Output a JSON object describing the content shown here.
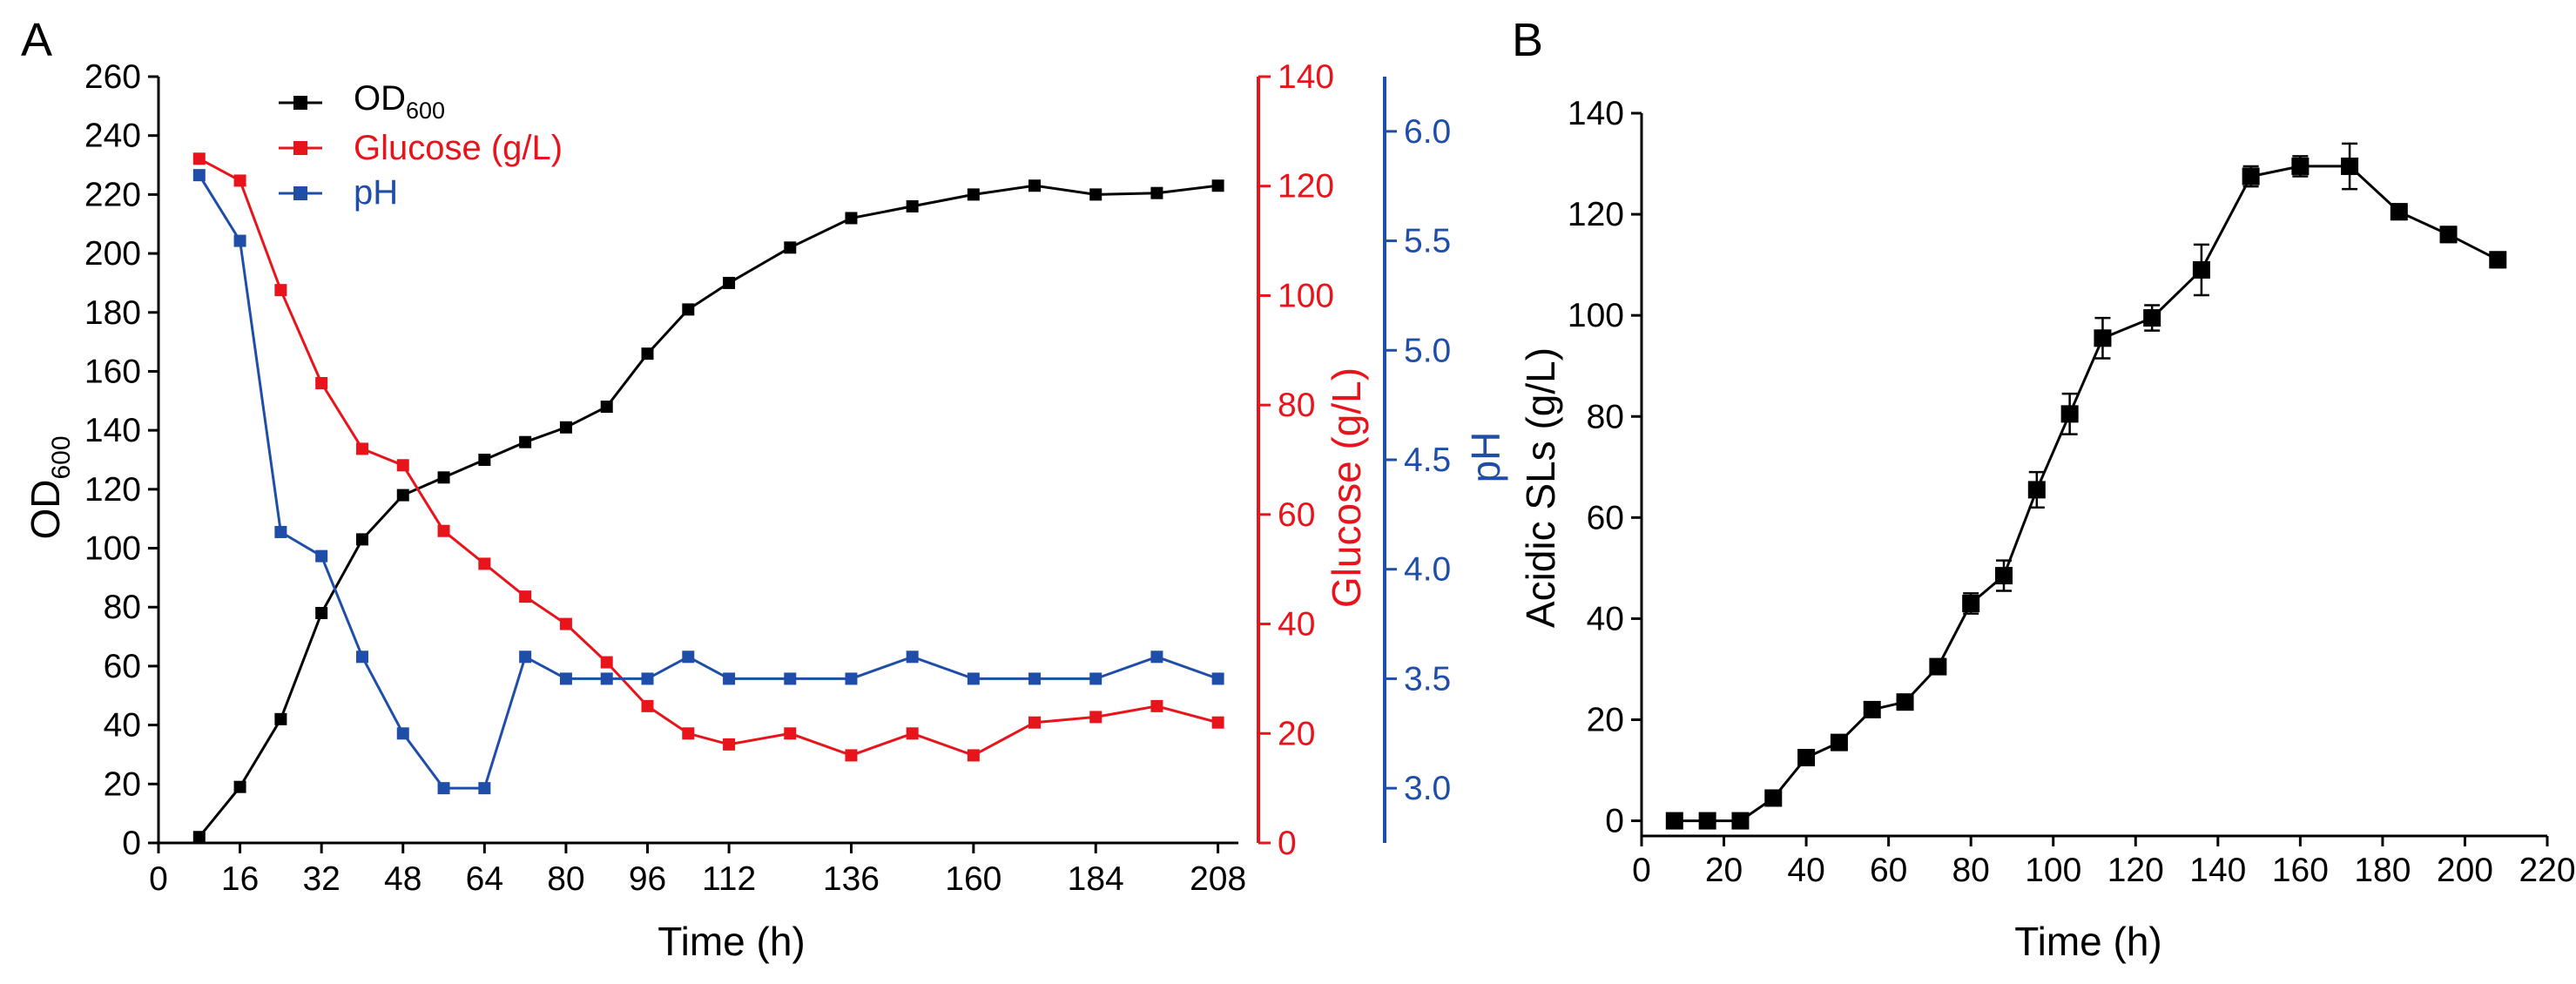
{
  "panels": {
    "a": {
      "letter": "A",
      "chart_data": {
        "type": "line",
        "xlabel": "Time (h)",
        "xlim": [
          0,
          212
        ],
        "xticks": [
          0,
          16,
          32,
          48,
          64,
          80,
          96,
          112,
          136,
          160,
          184,
          208
        ],
        "x": [
          8,
          16,
          24,
          32,
          40,
          48,
          56,
          64,
          72,
          80,
          88,
          96,
          104,
          112,
          124,
          136,
          148,
          160,
          172,
          184,
          196,
          208
        ],
        "series": [
          {
            "name": "OD600",
            "legend_main": "OD",
            "legend_sub": "600",
            "color": "#000000",
            "axis": "left",
            "values": [
              2,
              19,
              42,
              78,
              103,
              118,
              124,
              130,
              136,
              141,
              148,
              166,
              181,
              190,
              202,
              212,
              216,
              220,
              223,
              220,
              220.5,
              223
            ]
          },
          {
            "name": "Glucose (g/L)",
            "color": "#e8141c",
            "axis": "right1",
            "values": [
              125,
              121,
              101,
              84,
              72,
              69,
              57,
              51,
              45,
              40,
              33,
              25,
              20,
              18,
              20,
              16,
              20,
              16,
              22,
              23,
              25,
              22
            ]
          },
          {
            "name": "pH",
            "color": "#1f4ea8",
            "axis": "right2",
            "values": [
              5.8,
              5.5,
              4.17,
              4.06,
              3.6,
              3.25,
              3.0,
              3.0,
              3.6,
              3.5,
              3.5,
              3.5,
              3.6,
              3.5,
              3.5,
              3.5,
              3.6,
              3.5,
              3.5,
              3.5,
              3.6,
              3.5
            ]
          }
        ],
        "axes": {
          "left": {
            "label_main": "OD",
            "label_sub": "600",
            "ylim": [
              0,
              260
            ],
            "ticks": [
              0,
              20,
              40,
              60,
              80,
              100,
              120,
              140,
              160,
              180,
              200,
              220,
              240,
              260
            ],
            "color": "#000000"
          },
          "right1": {
            "label": "Glucose (g/L)",
            "ylim": [
              0,
              140
            ],
            "ticks": [
              0,
              20,
              40,
              60,
              80,
              100,
              120,
              140
            ],
            "color": "#e8141c"
          },
          "right2": {
            "label": "pH",
            "ylim": [
              2.75,
              6.25
            ],
            "ticks": [
              "3.0",
              "3.5",
              "4.0",
              "4.5",
              "5.0",
              "5.5",
              "6.0"
            ],
            "color": "#1f4ea8"
          }
        },
        "legend": "top-left"
      }
    },
    "b": {
      "letter": "B",
      "chart_data": {
        "type": "line",
        "xlabel": "Time (h)",
        "ylabel": "Acidic SLs (g/L)",
        "xlim": [
          0,
          220
        ],
        "ylim": [
          -3,
          140
        ],
        "xticks": [
          0,
          20,
          40,
          60,
          80,
          100,
          120,
          140,
          160,
          180,
          200,
          220
        ],
        "yticks": [
          0,
          20,
          40,
          60,
          80,
          100,
          120,
          140
        ],
        "color": "#000000",
        "x": [
          8,
          16,
          24,
          32,
          40,
          48,
          56,
          64,
          72,
          80,
          88,
          96,
          104,
          112,
          124,
          136,
          148,
          160,
          172,
          184,
          196,
          208
        ],
        "values": [
          0,
          0,
          0,
          4.5,
          12.5,
          15.5,
          22,
          23.5,
          30.5,
          43,
          48.5,
          65.5,
          80.5,
          95.5,
          99.5,
          109,
          127.5,
          129.5,
          129.5,
          120.5,
          116,
          111
        ],
        "errors": [
          0.3,
          0.3,
          0.4,
          0.6,
          0.6,
          0.8,
          0.8,
          1.0,
          1.2,
          2.0,
          3.0,
          3.5,
          4.0,
          4.0,
          2.5,
          5.0,
          2.0,
          2.0,
          4.5,
          1.5,
          1.5,
          1.5
        ]
      }
    }
  }
}
